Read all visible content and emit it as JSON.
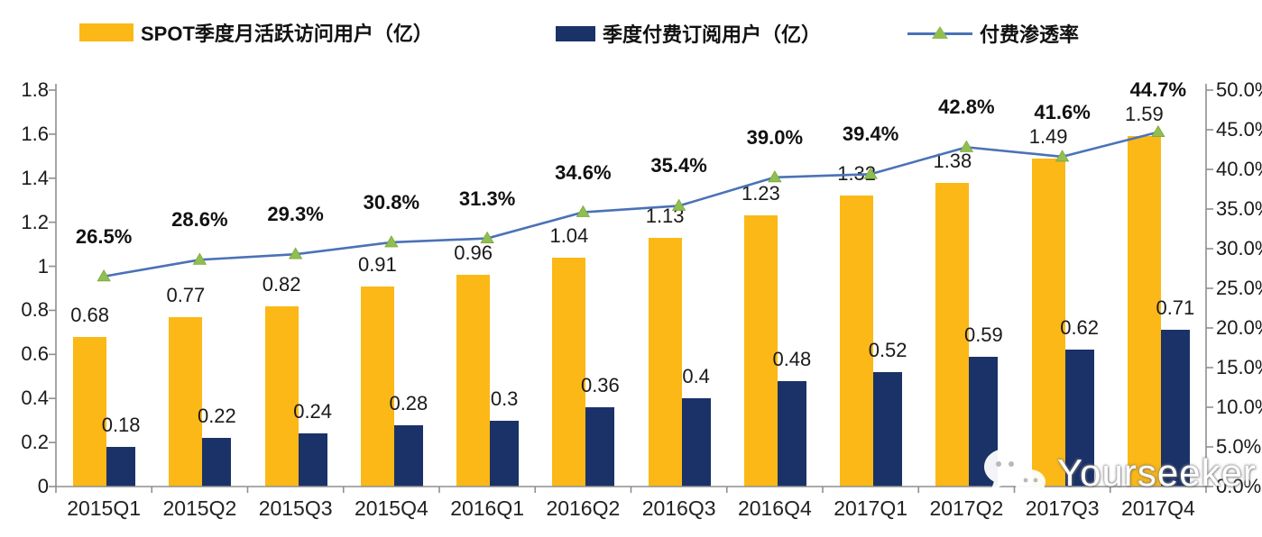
{
  "legend": {
    "mau_label": "SPOT季度月活跃访问用户（亿）",
    "paid_label": "季度付费订阅用户（亿）",
    "penetration_label": "付费渗透率"
  },
  "watermark": {
    "text": "Yourseeker",
    "icon": "wechat-icon"
  },
  "colors": {
    "mau_bar": "#FBB816",
    "paid_bar": "#1A3268",
    "penetration_line": "#4A72B8",
    "penetration_marker": "#90BE50",
    "axis": "#8F8F8F",
    "label_text": "#1A1A1A"
  },
  "chart_data": {
    "type": "bar",
    "subtype": "grouped-bars-with-line-overlay",
    "categories": [
      "2015Q1",
      "2015Q2",
      "2015Q3",
      "2015Q4",
      "2016Q1",
      "2016Q2",
      "2016Q3",
      "2016Q4",
      "2017Q1",
      "2017Q2",
      "2017Q3",
      "2017Q4"
    ],
    "series": [
      {
        "name": "SPOT季度月活跃访问用户（亿）",
        "type": "bar",
        "axis": "left",
        "color": "#FBB816",
        "values": [
          0.68,
          0.77,
          0.82,
          0.91,
          0.96,
          1.04,
          1.13,
          1.23,
          1.32,
          1.38,
          1.49,
          1.59
        ],
        "labels": [
          "0.68",
          "0.77",
          "0.82",
          "0.91",
          "0.96",
          "1.04",
          "1.13",
          "1.23",
          "1.32",
          "1.38",
          "1.49",
          "1.59"
        ]
      },
      {
        "name": "季度付费订阅用户（亿）",
        "type": "bar",
        "axis": "left",
        "color": "#1A3268",
        "values": [
          0.18,
          0.22,
          0.24,
          0.28,
          0.3,
          0.36,
          0.4,
          0.48,
          0.52,
          0.59,
          0.62,
          0.71
        ],
        "labels": [
          "0.18",
          "0.22",
          "0.24",
          "0.28",
          "0.3",
          "0.36",
          "0.4",
          "0.48",
          "0.52",
          "0.59",
          "0.62",
          "0.71"
        ]
      },
      {
        "name": "付费渗透率",
        "type": "line",
        "axis": "right",
        "color": "#4A72B8",
        "marker": "triangle-up",
        "marker_color": "#90BE50",
        "values": [
          26.5,
          28.6,
          29.3,
          30.8,
          31.3,
          34.6,
          35.4,
          39.0,
          39.4,
          42.8,
          41.6,
          44.7
        ],
        "labels": [
          "26.5%",
          "28.6%",
          "29.3%",
          "30.8%",
          "31.3%",
          "34.6%",
          "35.4%",
          "39.0%",
          "39.4%",
          "42.8%",
          "41.6%",
          "44.7%"
        ]
      }
    ],
    "left_axis": {
      "min": 0,
      "max": 1.8,
      "ticks": [
        "0",
        "0.2",
        "0.4",
        "0.6",
        "0.8",
        "1",
        "1.2",
        "1.4",
        "1.6",
        "1.8"
      ]
    },
    "right_axis": {
      "min": 0,
      "max": 50.0,
      "ticks": [
        "0.0%",
        "5.0%",
        "10.0%",
        "15.0%",
        "20.0%",
        "25.0%",
        "30.0%",
        "35.0%",
        "40.0%",
        "45.0%",
        "50.0%"
      ]
    },
    "grid": false,
    "legend_position": "top",
    "title": ""
  }
}
